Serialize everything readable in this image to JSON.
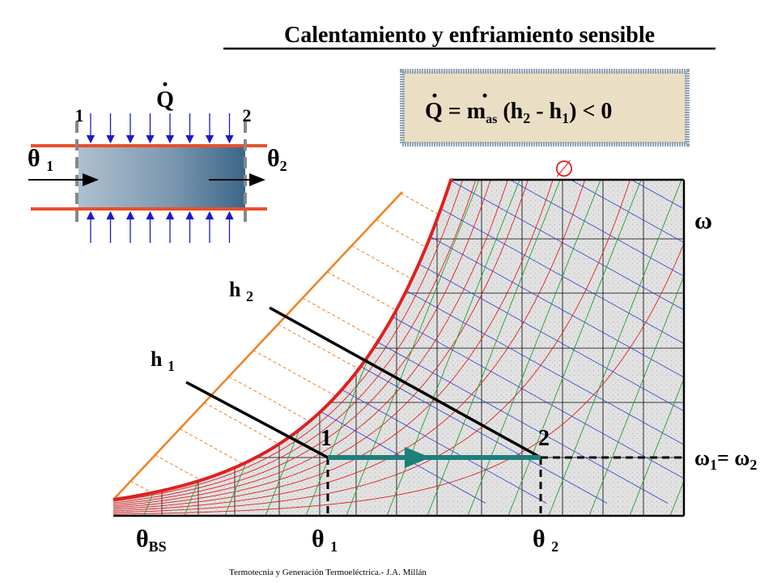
{
  "title": "Calentamiento y enfriamiento sensible",
  "formula": {
    "q": "Q",
    "eq": "= ",
    "m": "m",
    "m_sub": "as",
    "h2_open": " (h",
    "h2_sub": "2",
    "minus": " - h",
    "h1_sub": "1",
    "close": ") < 0"
  },
  "device": {
    "heat": "Q",
    "inlet": "1",
    "outlet": "2",
    "theta_in": {
      "symbol": "θ",
      "sub": "1"
    },
    "theta_out": {
      "symbol": "θ",
      "sub": "2"
    }
  },
  "chart": {
    "phi": "∅",
    "omega": "ω",
    "h2": {
      "symbol": "h",
      "sub": "2"
    },
    "h1": {
      "symbol": "h",
      "sub": "1"
    },
    "point1": "1",
    "point2": "2",
    "omega_eq": {
      "omega1": "ω",
      "sub1": "1",
      "eq": "= ω",
      "sub2": "2"
    },
    "theta_bs": {
      "symbol": "θ",
      "sub": "BS"
    },
    "theta1": {
      "symbol": "θ",
      "sub": "1"
    },
    "theta2": {
      "symbol": "θ",
      "sub": "2"
    }
  },
  "footer": "Termotecnia y Generación Termoeléctrica.- J.A. Millán"
}
